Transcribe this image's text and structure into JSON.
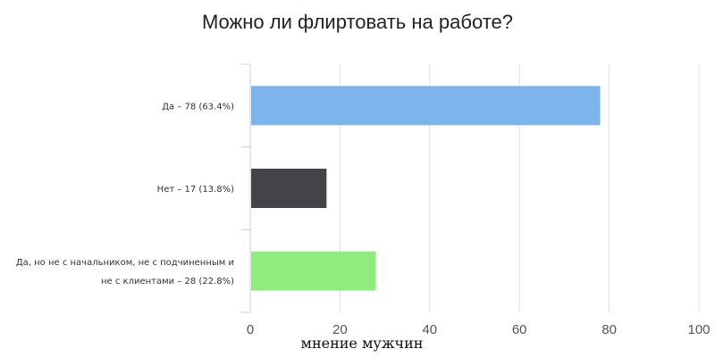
{
  "chart_data": {
    "type": "bar",
    "orientation": "horizontal",
    "title": "Можно ли флиртовать на работе?",
    "categories": [
      [
        "Да – 78 (63.4%)"
      ],
      [
        "Нет – 17 (13.8%)"
      ],
      [
        "Да, но не с начальником, не с подчиненным и",
        "не с клиентами – 28 (22.8%)"
      ]
    ],
    "values": [
      78,
      17,
      28
    ],
    "colors": [
      "#7cb5ec",
      "#434348",
      "#90ed7d"
    ],
    "xlim": [
      0,
      100
    ],
    "xticks": [
      0,
      20,
      40,
      60,
      80,
      100
    ],
    "grid": true,
    "caption": "мнение мужчин"
  }
}
